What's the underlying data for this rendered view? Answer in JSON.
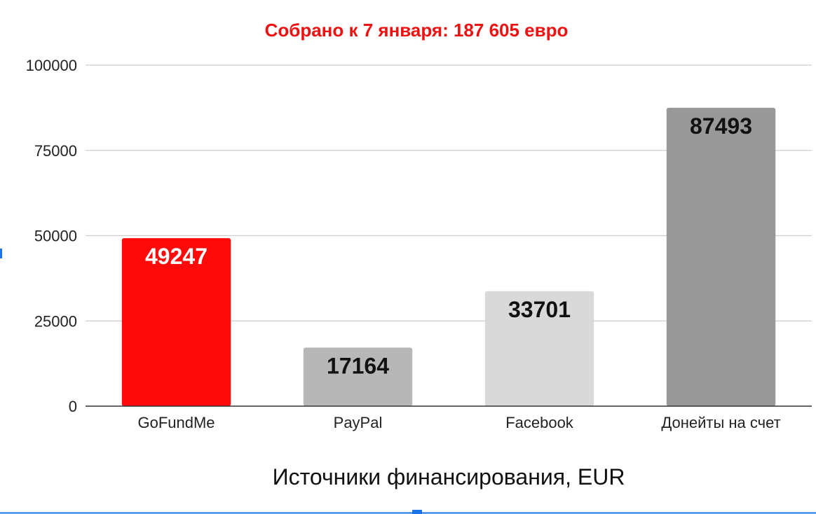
{
  "chart_data": {
    "type": "bar",
    "title": "Собрано к 7 января: 187 605 евро",
    "title_color": "#ee1111",
    "xlabel": "Источники финансирования, EUR",
    "ylabel": "",
    "categories": [
      "GoFundMe",
      "PayPal",
      "Facebook",
      "Донейты на счет"
    ],
    "values": [
      49247,
      17164,
      33701,
      87493
    ],
    "bar_colors": [
      "#ff0a0a",
      "#b7b7b7",
      "#d9d9d9",
      "#999999"
    ],
    "data_label_colors": [
      "#ffffff",
      "#111111",
      "#111111",
      "#111111"
    ],
    "ylim": [
      0,
      100000
    ],
    "yticks": [
      0,
      25000,
      50000,
      75000,
      100000
    ],
    "grid": true,
    "legend": "none"
  },
  "ui": {
    "menu_icon": "vertical-dots-icon"
  }
}
